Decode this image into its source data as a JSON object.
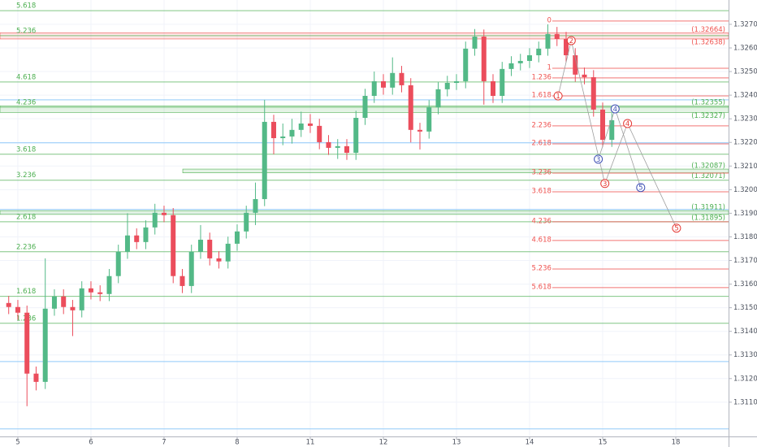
{
  "chart_data": {
    "type": "candlestick",
    "xlim": [
      -0.244,
      9.722
    ],
    "xticks": [
      {
        "value": 0,
        "label": "5"
      },
      {
        "value": 1,
        "label": "6"
      },
      {
        "value": 2,
        "label": "7"
      },
      {
        "value": 3,
        "label": "8"
      },
      {
        "value": 4,
        "label": "11"
      },
      {
        "value": 5,
        "label": "12"
      },
      {
        "value": 6,
        "label": "13"
      },
      {
        "value": 7,
        "label": "14"
      },
      {
        "value": 8,
        "label": "15"
      },
      {
        "value": 9,
        "label": "18"
      }
    ],
    "ylim": [
      1.30955,
      1.32803
    ],
    "yticks": [
      {
        "value": 1.327,
        "label": "1.32700"
      },
      {
        "value": 1.326,
        "label": "1.32600"
      },
      {
        "value": 1.325,
        "label": "1.32500"
      },
      {
        "value": 1.324,
        "label": "1.32400"
      },
      {
        "value": 1.323,
        "label": "1.32300"
      },
      {
        "value": 1.322,
        "label": "1.32200"
      },
      {
        "value": 1.321,
        "label": "1.32100"
      },
      {
        "value": 1.32,
        "label": "1.32000"
      },
      {
        "value": 1.319,
        "label": "1.31900"
      },
      {
        "value": 1.318,
        "label": "1.31800"
      },
      {
        "value": 1.317,
        "label": "1.31700"
      },
      {
        "value": 1.316,
        "label": "1.31600"
      },
      {
        "value": 1.315,
        "label": "1.31500"
      },
      {
        "value": 1.314,
        "label": "1.31400"
      },
      {
        "value": 1.313,
        "label": "1.31300"
      },
      {
        "value": 1.312,
        "label": "1.31200"
      },
      {
        "value": 1.311,
        "label": "1.31100"
      }
    ],
    "grid": true,
    "candles": {
      "up_color": "#53b987",
      "down_color": "#eb4d5c",
      "x": [
        -0.125,
        0,
        0.125,
        0.25,
        0.375,
        0.5,
        0.625,
        0.75,
        0.875,
        1,
        1.125,
        1.25,
        1.375,
        1.5,
        1.625,
        1.75,
        1.875,
        2,
        2.125,
        2.25,
        2.375,
        2.5,
        2.625,
        2.75,
        2.875,
        3,
        3.125,
        3.25,
        3.375,
        3.5,
        3.625,
        3.75,
        3.875,
        4,
        4.125,
        4.25,
        4.375,
        4.5,
        4.625,
        4.75,
        4.875,
        5,
        5.125,
        5.25,
        5.375,
        5.5,
        5.625,
        5.75,
        5.875,
        6,
        6.125,
        6.25,
        6.375,
        6.5,
        6.625,
        6.75,
        6.875,
        7,
        7.125,
        7.25,
        7.375,
        7.5,
        7.625,
        7.75,
        7.875,
        8,
        8.125
      ],
      "open": [
        1.3152,
        1.31503,
        1.31479,
        1.31221,
        1.31186,
        1.31496,
        1.31548,
        1.31503,
        1.31489,
        1.31582,
        1.31565,
        1.31558,
        1.31634,
        1.31737,
        1.31806,
        1.31778,
        1.3184,
        1.31902,
        1.31892,
        1.31634,
        1.31592,
        1.31737,
        1.31788,
        1.31709,
        1.31696,
        1.31771,
        1.31823,
        1.31902,
        1.3196,
        1.32287,
        1.32218,
        1.32225,
        1.32253,
        1.3228,
        1.3227,
        1.32201,
        1.32177,
        1.32184,
        1.32156,
        1.32304,
        1.32397,
        1.32459,
        1.32432,
        1.32494,
        1.32442,
        1.32253,
        1.32246,
        1.32349,
        1.32425,
        1.32452,
        1.32459,
        1.32597,
        1.32648,
        1.32459,
        1.32397,
        1.32511,
        1.32535,
        1.32545,
        1.32569,
        1.32597,
        1.32659,
        1.32638,
        1.32569,
        1.32487,
        1.32476,
        1.32339,
        1.32211
      ],
      "high": [
        1.3155,
        1.31533,
        1.31509,
        1.31251,
        1.31709,
        1.31578,
        1.31578,
        1.31533,
        1.31612,
        1.31612,
        1.31595,
        1.31664,
        1.31767,
        1.319,
        1.31836,
        1.3187,
        1.3194,
        1.31932,
        1.31922,
        1.31664,
        1.31767,
        1.3185,
        1.31818,
        1.31739,
        1.31801,
        1.31853,
        1.31932,
        1.3203,
        1.3238,
        1.32317,
        1.3228,
        1.323,
        1.3233,
        1.3232,
        1.323,
        1.32231,
        1.32214,
        1.32214,
        1.32334,
        1.32427,
        1.325,
        1.32489,
        1.3256,
        1.32524,
        1.32472,
        1.32283,
        1.32379,
        1.32455,
        1.32482,
        1.32489,
        1.32627,
        1.3268,
        1.32678,
        1.32489,
        1.32541,
        1.32565,
        1.32575,
        1.32599,
        1.32627,
        1.327,
        1.32689,
        1.32668,
        1.32599,
        1.32517,
        1.32506,
        1.32369,
        1.32324
      ],
      "low": [
        1.31473,
        1.31449,
        1.31083,
        1.3115,
        1.31156,
        1.31466,
        1.31473,
        1.3138,
        1.31459,
        1.31535,
        1.31528,
        1.31528,
        1.31604,
        1.31707,
        1.31748,
        1.31748,
        1.3181,
        1.31862,
        1.31604,
        1.31562,
        1.31562,
        1.31707,
        1.31679,
        1.31666,
        1.31666,
        1.31741,
        1.31793,
        1.3185,
        1.3193,
        1.3215,
        1.32188,
        1.32195,
        1.32223,
        1.3224,
        1.32171,
        1.32147,
        1.3213,
        1.32126,
        1.32126,
        1.32274,
        1.32367,
        1.32402,
        1.32402,
        1.32412,
        1.322,
        1.3217,
        1.32216,
        1.32319,
        1.32395,
        1.32422,
        1.32429,
        1.32567,
        1.3236,
        1.32367,
        1.32367,
        1.32481,
        1.32505,
        1.32515,
        1.32539,
        1.32567,
        1.32608,
        1.32539,
        1.32457,
        1.32446,
        1.32309,
        1.32181,
        1.32181
      ],
      "close": [
        1.31503,
        1.31479,
        1.31221,
        1.31186,
        1.31496,
        1.31548,
        1.31503,
        1.31489,
        1.31582,
        1.31565,
        1.31558,
        1.31634,
        1.31737,
        1.31806,
        1.31778,
        1.3184,
        1.31902,
        1.31892,
        1.31634,
        1.31592,
        1.31737,
        1.31788,
        1.31709,
        1.31696,
        1.31771,
        1.31823,
        1.31902,
        1.3196,
        1.32287,
        1.32218,
        1.32225,
        1.32253,
        1.3228,
        1.3227,
        1.32201,
        1.32177,
        1.32184,
        1.32156,
        1.32304,
        1.32397,
        1.32459,
        1.32432,
        1.32494,
        1.32442,
        1.32253,
        1.32246,
        1.32349,
        1.32425,
        1.32452,
        1.32459,
        1.32597,
        1.32648,
        1.32459,
        1.32397,
        1.32511,
        1.32535,
        1.32545,
        1.32569,
        1.32597,
        1.32659,
        1.32638,
        1.32569,
        1.32487,
        1.32476,
        1.32339,
        1.32211,
        1.32294
      ]
    },
    "green_levels": {
      "color": "#4caf50",
      "labels": [
        "5.618",
        "5.236",
        "4.618",
        "4.236",
        "3.618",
        "3.236",
        "2.618",
        "2.236",
        "1.618",
        "1.236"
      ],
      "values": [
        1.32758,
        1.32652,
        1.32456,
        1.32349,
        1.3215,
        1.3204,
        1.31864,
        1.31737,
        1.31548,
        1.31434
      ]
    },
    "red_levels": {
      "color": "#ef5350",
      "x_start": 7.31,
      "labels": [
        "0",
        "1",
        "1.236",
        "1.618",
        "2.236",
        "2.618",
        "3.236",
        "3.618",
        "4.236",
        "4.618",
        "5.236",
        "5.618"
      ],
      "values": [
        1.32714,
        1.32514,
        1.32473,
        1.32397,
        1.3227,
        1.32194,
        1.3207,
        1.31991,
        1.31864,
        1.31785,
        1.31664,
        1.31585
      ]
    },
    "blue_levels": {
      "color": "#90caf9",
      "values": [
        1.3238,
        1.32198,
        1.31916,
        1.31272,
        1.30987
      ]
    },
    "zones": [
      {
        "color": "#ef5350",
        "values": [
          1.32664,
          1.32638
        ],
        "labels": [
          "(1.32664)",
          "(1.32638)"
        ]
      },
      {
        "color": "#4caf50",
        "values": [
          1.32355,
          1.32327
        ],
        "labels": [
          "(1.32355)",
          "(1.32327)"
        ]
      },
      {
        "color": "#4caf50",
        "x_start": 2.256,
        "values": [
          1.32087,
          1.32071
        ],
        "labels": [
          "(1.32087)",
          "(1.32071)"
        ]
      },
      {
        "color": "#4caf50",
        "values": [
          1.31911,
          1.31895
        ],
        "labels": [
          "(1.31911)",
          "(1.31895)"
        ]
      }
    ],
    "waves": [
      {
        "color": "#e53935",
        "labels": [
          "1",
          "2",
          "3",
          "4",
          "5"
        ],
        "x": [
          7.39,
          7.57,
          8.03,
          8.34,
          9.01
        ],
        "values": [
          1.32397,
          1.32631,
          1.32026,
          1.3228,
          1.31837
        ]
      },
      {
        "color": "#3f51b5",
        "labels": [
          "3",
          "4",
          "5"
        ],
        "x": [
          7.94,
          8.17,
          8.52
        ],
        "values": [
          1.32129,
          1.32342,
          1.32009
        ]
      }
    ]
  }
}
